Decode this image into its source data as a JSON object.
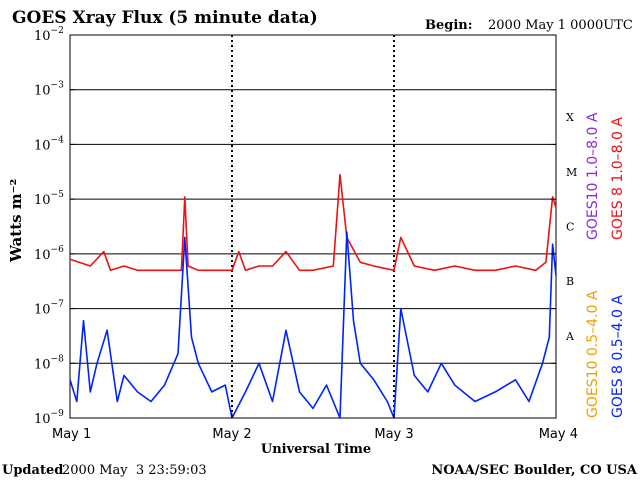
{
  "header": {
    "title": "GOES Xray Flux (5 minute data)",
    "begin_label": "Begin:",
    "begin_value": "2000 May 1 0000UTC"
  },
  "footer": {
    "updated_label": "Updated",
    "updated_value": "2000 May  3 23:59:03",
    "credit": "NOAA/SEC Boulder, CO USA"
  },
  "colors": {
    "goes10_long": "#8a2be2",
    "goes8_long": "#ee1111",
    "goes10_short": "#f0a000",
    "goes8_short": "#0022ff"
  },
  "chart_data": {
    "type": "line",
    "title": "GOES Xray Flux (5 minute data)",
    "xlabel": "Universal Time",
    "ylabel": "Watts m⁻²",
    "y_scale": "log",
    "ylim": [
      1e-09,
      0.01
    ],
    "y_ticks": [
      {
        "value": 1e-09,
        "base": "10",
        "exp": "−9"
      },
      {
        "value": 1e-08,
        "base": "10",
        "exp": "−8"
      },
      {
        "value": 1e-07,
        "base": "10",
        "exp": "−7"
      },
      {
        "value": 1e-06,
        "base": "10",
        "exp": "−6"
      },
      {
        "value": 1e-05,
        "base": "10",
        "exp": "−5"
      },
      {
        "value": 0.0001,
        "base": "10",
        "exp": "−4"
      },
      {
        "value": 0.001,
        "base": "10",
        "exp": "−3"
      },
      {
        "value": 0.01,
        "base": "10",
        "exp": "−2"
      }
    ],
    "xlim": [
      "2000-05-01 00:00",
      "2000-05-04 00:00"
    ],
    "x_ticks": [
      {
        "value": "2000-05-01 00:00",
        "label": "May 1"
      },
      {
        "value": "2000-05-02 00:00",
        "label": "May 2"
      },
      {
        "value": "2000-05-03 00:00",
        "label": "May 3"
      },
      {
        "value": "2000-05-04 00:00",
        "label": "May 4"
      }
    ],
    "flare_classes": [
      {
        "label": "A",
        "lower": 1e-08
      },
      {
        "label": "B",
        "lower": 1e-07
      },
      {
        "label": "C",
        "lower": 1e-06
      },
      {
        "label": "M",
        "lower": 1e-05
      },
      {
        "label": "X",
        "lower": 0.0001
      }
    ],
    "grid": true,
    "legend_position": "right",
    "series": [
      {
        "name": "GOES 8 1.0–8.0 A",
        "color": "#ee1111",
        "x": [
          "2000-05-01 00:00",
          "2000-05-01 03:00",
          "2000-05-01 05:00",
          "2000-05-01 06:00",
          "2000-05-01 08:00",
          "2000-05-01 10:00",
          "2000-05-01 12:00",
          "2000-05-01 15:00",
          "2000-05-01 16:30",
          "2000-05-01 17:00",
          "2000-05-01 17:30",
          "2000-05-01 19:00",
          "2000-05-01 21:00",
          "2000-05-02 00:00",
          "2000-05-02 01:00",
          "2000-05-02 02:00",
          "2000-05-02 04:00",
          "2000-05-02 06:00",
          "2000-05-02 08:00",
          "2000-05-02 10:00",
          "2000-05-02 12:00",
          "2000-05-02 15:00",
          "2000-05-02 16:00",
          "2000-05-02 17:00",
          "2000-05-02 19:00",
          "2000-05-02 21:00",
          "2000-05-03 00:00",
          "2000-05-03 01:00",
          "2000-05-03 03:00",
          "2000-05-03 06:00",
          "2000-05-03 09:00",
          "2000-05-03 12:00",
          "2000-05-03 15:00",
          "2000-05-03 18:00",
          "2000-05-03 21:00",
          "2000-05-03 22:30",
          "2000-05-03 23:30",
          "2000-05-04 00:00"
        ],
        "y": [
          8e-07,
          6e-07,
          1.1e-06,
          5e-07,
          6e-07,
          5e-07,
          5e-07,
          5e-07,
          5e-07,
          1.1e-05,
          6e-07,
          5e-07,
          5e-07,
          5e-07,
          1.1e-06,
          5e-07,
          6e-07,
          6e-07,
          1.1e-06,
          5e-07,
          5e-07,
          6e-07,
          2.8e-05,
          2e-06,
          7e-07,
          6e-07,
          5e-07,
          2e-06,
          6e-07,
          5e-07,
          6e-07,
          5e-07,
          5e-07,
          6e-07,
          5e-07,
          7e-07,
          1.1e-05,
          7e-06
        ]
      },
      {
        "name": "GOES 8 0.5–4.0 A",
        "color": "#0022ff",
        "x": [
          "2000-05-01 00:00",
          "2000-05-01 01:00",
          "2000-05-01 02:00",
          "2000-05-01 03:00",
          "2000-05-01 04:00",
          "2000-05-01 05:30",
          "2000-05-01 07:00",
          "2000-05-01 08:00",
          "2000-05-01 10:00",
          "2000-05-01 12:00",
          "2000-05-01 14:00",
          "2000-05-01 16:00",
          "2000-05-01 17:00",
          "2000-05-01 18:00",
          "2000-05-01 19:00",
          "2000-05-01 21:00",
          "2000-05-01 23:00",
          "2000-05-02 00:00",
          "2000-05-02 02:00",
          "2000-05-02 04:00",
          "2000-05-02 06:00",
          "2000-05-02 08:00",
          "2000-05-02 10:00",
          "2000-05-02 12:00",
          "2000-05-02 14:00",
          "2000-05-02 16:00",
          "2000-05-02 17:00",
          "2000-05-02 18:00",
          "2000-05-02 19:00",
          "2000-05-02 21:00",
          "2000-05-02 23:00",
          "2000-05-03 00:00",
          "2000-05-03 01:00",
          "2000-05-03 03:00",
          "2000-05-03 05:00",
          "2000-05-03 07:00",
          "2000-05-03 09:00",
          "2000-05-03 12:00",
          "2000-05-03 15:00",
          "2000-05-03 18:00",
          "2000-05-03 20:00",
          "2000-05-03 22:00",
          "2000-05-03 23:00",
          "2000-05-03 23:30",
          "2000-05-04 00:00"
        ],
        "y": [
          5e-09,
          2e-09,
          6e-08,
          3e-09,
          1e-08,
          4e-08,
          2e-09,
          6e-09,
          3e-09,
          2e-09,
          4e-09,
          1.5e-08,
          2e-06,
          3e-08,
          1e-08,
          3e-09,
          4e-09,
          1e-09,
          3e-09,
          1e-08,
          2e-09,
          4e-08,
          3e-09,
          1.5e-09,
          4e-09,
          1e-09,
          2.5e-06,
          6e-08,
          1e-08,
          5e-09,
          2e-09,
          1e-09,
          1e-07,
          6e-09,
          3e-09,
          1e-08,
          4e-09,
          2e-09,
          3e-09,
          5e-09,
          2e-09,
          1e-08,
          3e-08,
          1.5e-06,
          4e-07
        ]
      }
    ],
    "legend_only_series": [
      {
        "name": "GOES10 1.0–8.0 A",
        "color": "#8a2be2"
      },
      {
        "name": "GOES10 0.5–4.0 A",
        "color": "#f0a000"
      }
    ]
  }
}
